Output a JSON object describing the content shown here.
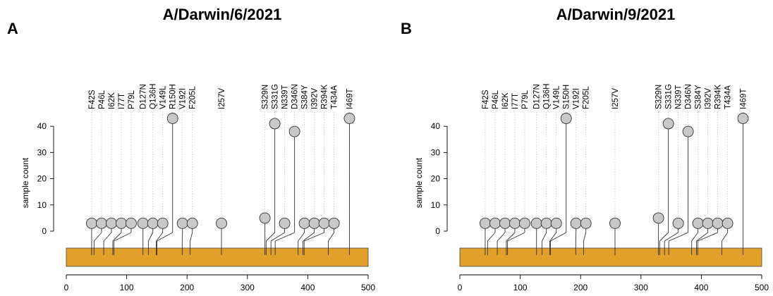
{
  "chart_data": [
    {
      "type": "lollipop",
      "panel_letter": "A",
      "title": "A/Darwin/6/2021",
      "ylabel": "sample count",
      "yticks": [
        0,
        10,
        20,
        30,
        40
      ],
      "xticks": [
        0,
        100,
        200,
        300,
        400,
        500
      ],
      "xlim": [
        0,
        500
      ],
      "ylim": [
        -2,
        46
      ],
      "protein_bar_color": "#E0A02A",
      "grid": "dotted vertical guides",
      "mutations": [
        {
          "label": "F42S",
          "position": 42,
          "count": 3
        },
        {
          "label": "P46L",
          "position": 46,
          "count": 3
        },
        {
          "label": "I62K",
          "position": 62,
          "count": 3
        },
        {
          "label": "I77T",
          "position": 77,
          "count": 3
        },
        {
          "label": "P79L",
          "position": 79,
          "count": 3
        },
        {
          "label": "D127N",
          "position": 127,
          "count": 3
        },
        {
          "label": "Q136H",
          "position": 136,
          "count": 3
        },
        {
          "label": "V149L",
          "position": 149,
          "count": 3
        },
        {
          "label": "R150H",
          "position": 150,
          "count": 43
        },
        {
          "label": "V192I",
          "position": 192,
          "count": 3
        },
        {
          "label": "F205L",
          "position": 205,
          "count": 3
        },
        {
          "label": "I257V",
          "position": 257,
          "count": 3
        },
        {
          "label": "S329N",
          "position": 329,
          "count": 5
        },
        {
          "label": "S331G",
          "position": 331,
          "count": 41
        },
        {
          "label": "N339T",
          "position": 339,
          "count": 3
        },
        {
          "label": "D346N",
          "position": 346,
          "count": 38
        },
        {
          "label": "S384Y",
          "position": 384,
          "count": 3
        },
        {
          "label": "I392V",
          "position": 392,
          "count": 3
        },
        {
          "label": "R394K",
          "position": 394,
          "count": 3
        },
        {
          "label": "T434A",
          "position": 434,
          "count": 3
        },
        {
          "label": "I469T",
          "position": 469,
          "count": 43
        }
      ]
    },
    {
      "type": "lollipop",
      "panel_letter": "B",
      "title": "A/Darwin/9/2021",
      "ylabel": "sample count",
      "yticks": [
        0,
        10,
        20,
        30,
        40
      ],
      "xticks": [
        0,
        100,
        200,
        300,
        400,
        500
      ],
      "xlim": [
        0,
        500
      ],
      "ylim": [
        -2,
        46
      ],
      "protein_bar_color": "#E0A02A",
      "grid": "dotted vertical guides",
      "mutations": [
        {
          "label": "F42S",
          "position": 42,
          "count": 3
        },
        {
          "label": "P46L",
          "position": 46,
          "count": 3
        },
        {
          "label": "I62K",
          "position": 62,
          "count": 3
        },
        {
          "label": "I77T",
          "position": 77,
          "count": 3
        },
        {
          "label": "P79L",
          "position": 79,
          "count": 3
        },
        {
          "label": "D127N",
          "position": 127,
          "count": 3
        },
        {
          "label": "Q136H",
          "position": 136,
          "count": 3
        },
        {
          "label": "V149L",
          "position": 149,
          "count": 3
        },
        {
          "label": "S150H",
          "position": 150,
          "count": 43
        },
        {
          "label": "V192I",
          "position": 192,
          "count": 3
        },
        {
          "label": "F205L",
          "position": 205,
          "count": 3
        },
        {
          "label": "I257V",
          "position": 257,
          "count": 3
        },
        {
          "label": "S329N",
          "position": 329,
          "count": 5
        },
        {
          "label": "S331G",
          "position": 331,
          "count": 41
        },
        {
          "label": "N339T",
          "position": 339,
          "count": 3
        },
        {
          "label": "D346N",
          "position": 346,
          "count": 38
        },
        {
          "label": "S384Y",
          "position": 384,
          "count": 3
        },
        {
          "label": "I392V",
          "position": 392,
          "count": 3
        },
        {
          "label": "R394K",
          "position": 394,
          "count": 3
        },
        {
          "label": "T434A",
          "position": 434,
          "count": 3
        },
        {
          "label": "I469T",
          "position": 469,
          "count": 43
        }
      ]
    }
  ]
}
